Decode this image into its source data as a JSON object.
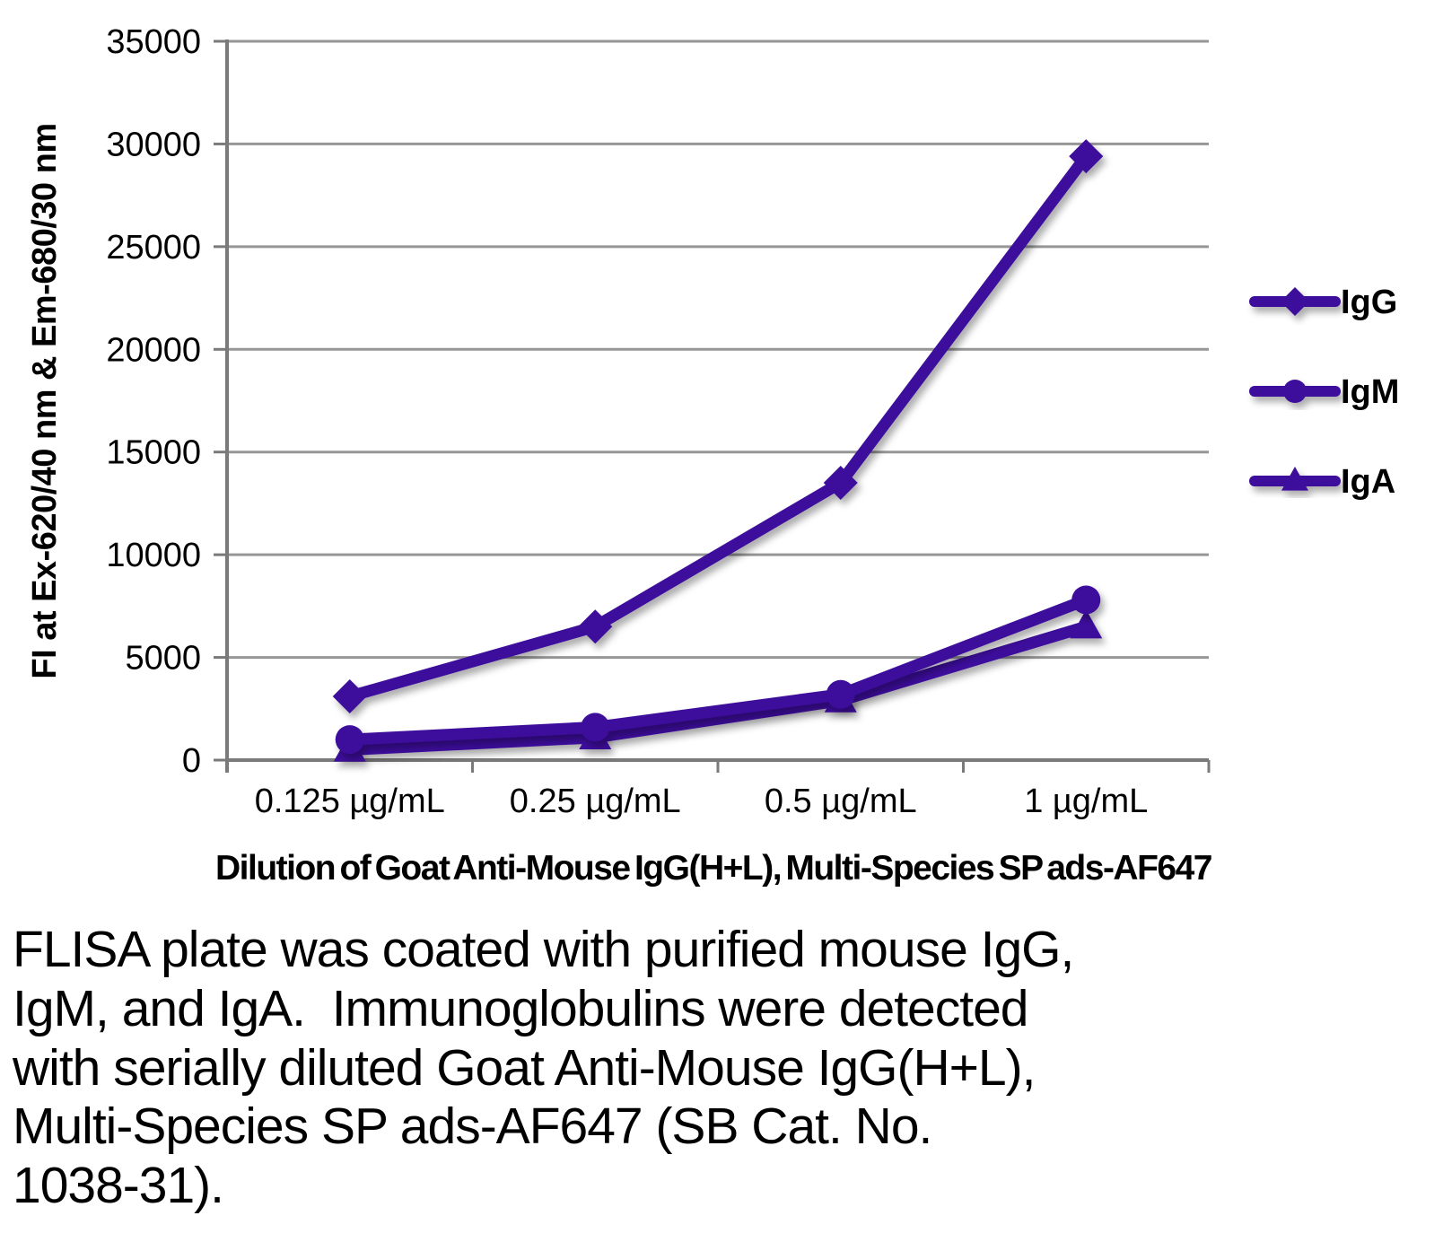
{
  "chart_data": {
    "type": "line",
    "title": "",
    "categories": [
      "0.125 µg/mL",
      "0.25 µg/mL",
      "0.5 µg/mL",
      "1 µg/mL"
    ],
    "series": [
      {
        "name": "IgG",
        "marker": "diamond",
        "values": [
          3100,
          6500,
          13500,
          29400
        ]
      },
      {
        "name": "IgM",
        "marker": "circle",
        "values": [
          1000,
          1600,
          3200,
          7800
        ]
      },
      {
        "name": "IgA",
        "marker": "triangle",
        "values": [
          500,
          1100,
          2900,
          6500
        ]
      }
    ],
    "xlabel": "Dilution of Goat Anti-Mouse IgG(H+L), Multi-Species SP ads-AF647",
    "ylabel": "FI at Ex-620/40 nm & Em-680/30 nm",
    "ylim": [
      0,
      35000
    ],
    "yticks": [
      0,
      5000,
      10000,
      15000,
      20000,
      25000,
      30000,
      35000
    ],
    "grid": true,
    "legend_position": "right",
    "colors": {
      "series": "#3E0D9C",
      "grid": "#969696",
      "axis": "#7A7A7A",
      "text": "#000000"
    }
  },
  "caption": {
    "text": "FLISA plate was coated with purified mouse IgG,\nIgM, and IgA.  Immunoglobulins were detected\nwith serially diluted Goat Anti-Mouse IgG(H+L),\nMulti-Species SP ads-AF647 (SB Cat. No.\n1038-31)."
  }
}
